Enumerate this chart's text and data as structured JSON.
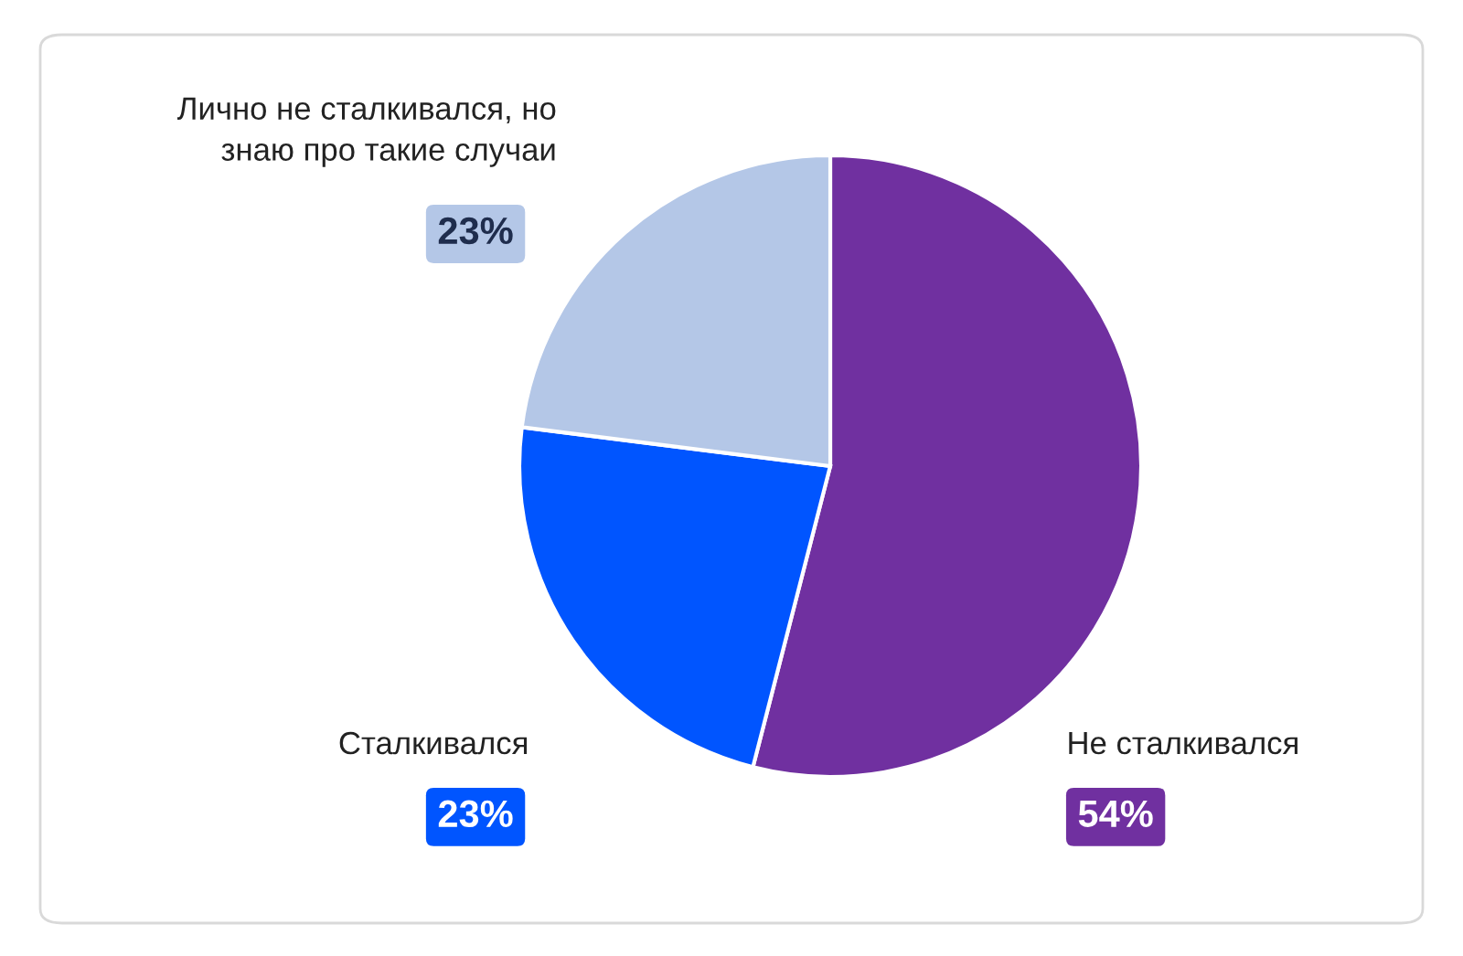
{
  "chart_data": {
    "type": "pie",
    "categories": [
      "Не сталкивался",
      "Сталкивался",
      "Лично не сталкивался, но\nзнаю про такие случаи"
    ],
    "values": [
      54,
      23,
      23
    ],
    "value_labels": [
      "54%",
      "23%",
      "23%"
    ],
    "colors": [
      "#7030a0",
      "#0055ff",
      "#b4c7e7"
    ]
  }
}
